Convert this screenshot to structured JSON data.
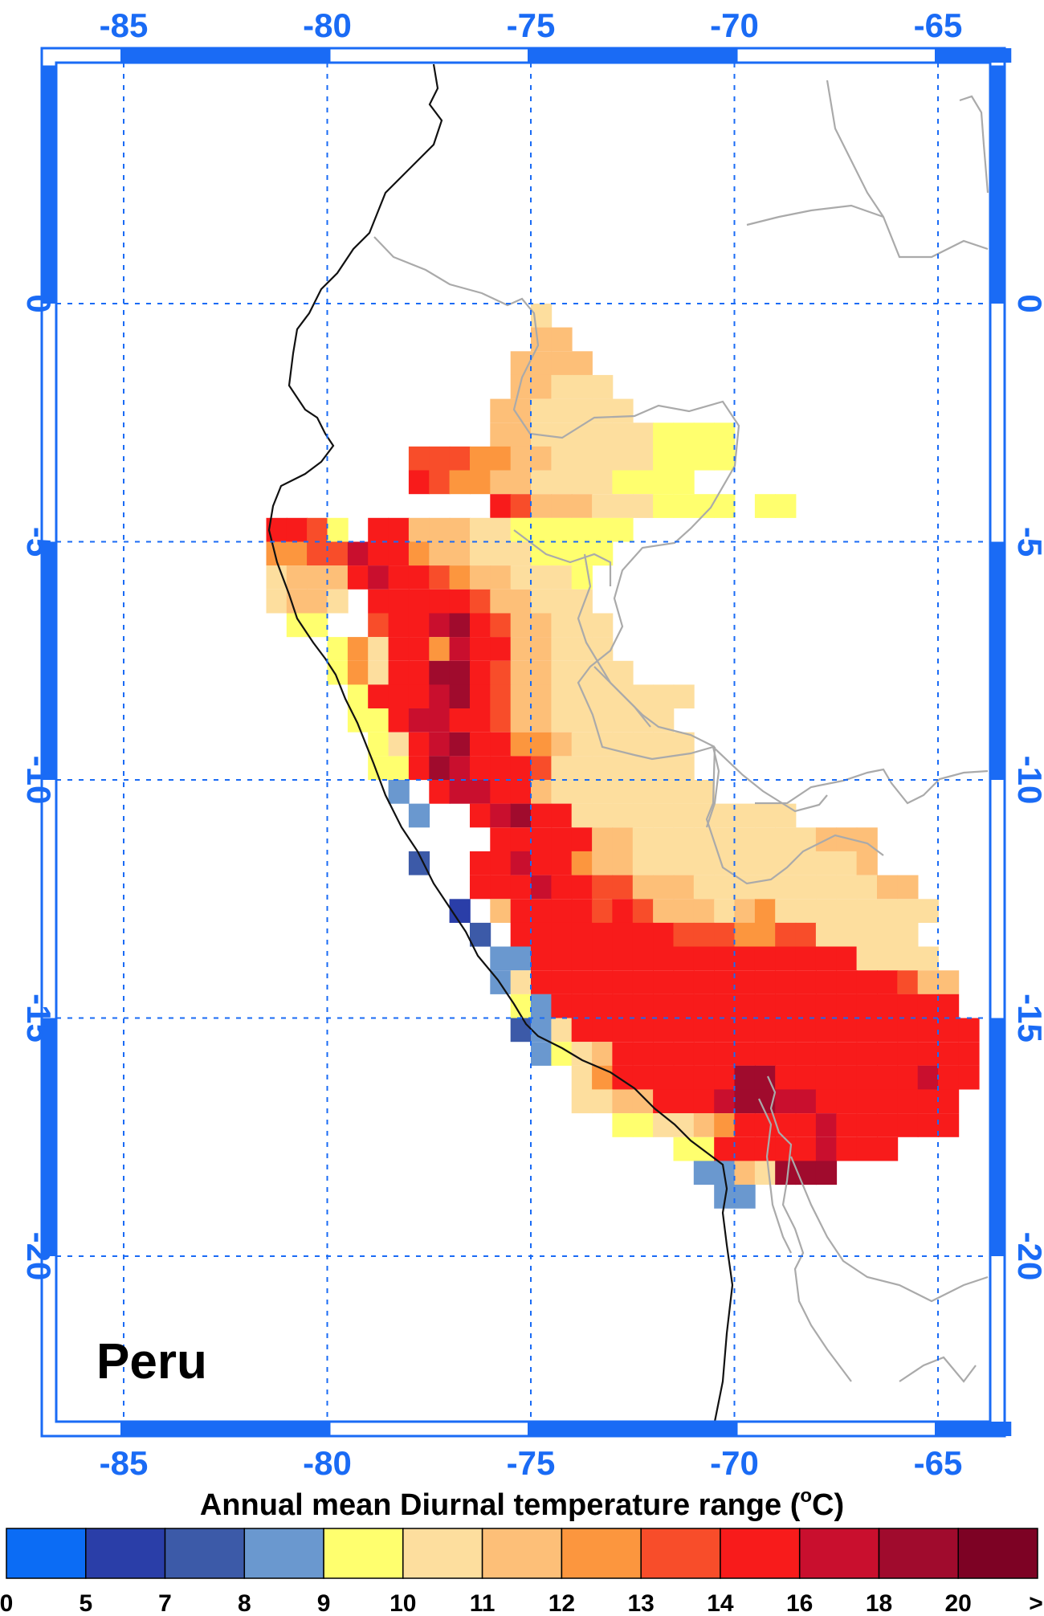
{
  "map": {
    "panel_label": "Peru",
    "lon_ticks": [
      "-85",
      "-80",
      "-75",
      "-70",
      "-65"
    ],
    "lat_ticks": [
      "0",
      "-5",
      "-10",
      "-15",
      "-20"
    ],
    "lon_values": [
      -85,
      -80,
      -75,
      -70,
      -65
    ],
    "lat_values": [
      0,
      -5,
      -10,
      -15,
      -20
    ],
    "lon_range": [
      -87,
      -63.2
    ],
    "lat_range": [
      5,
      -23
    ],
    "grid": true,
    "grid_color": "#1a6bf5",
    "frame_color": "#1a6bf5",
    "coastline_color": "#000000",
    "border_color": "#aaaaaa"
  },
  "colorbar": {
    "title": "Annual mean Diurnal temperature range (",
    "title_unit_sup": "o",
    "title_unit_tail": "C)",
    "tick_labels": [
      "0",
      "5",
      "7",
      "8",
      "9",
      "10",
      "11",
      "12",
      "13",
      "14",
      "16",
      "18",
      "20",
      ">"
    ],
    "colors": [
      "#0b6cf5",
      "#2a3ea8",
      "#3c5aa8",
      "#6a98cf",
      "#ffff6e",
      "#fdde9e",
      "#fdbf78",
      "#fc963e",
      "#f84d2a",
      "#f81b1b",
      "#c90f2e",
      "#a00b2d",
      "#7d0224"
    ]
  }
}
